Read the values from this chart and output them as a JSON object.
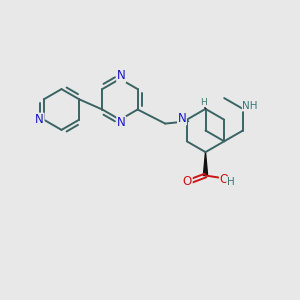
{
  "background_color": "#e8e8e8",
  "bond_color": "#3a6464",
  "n_color": "#1515cc",
  "o_color": "#cc1515",
  "h_color": "#3a7878",
  "black": "#111111",
  "figsize": [
    3.0,
    3.0
  ],
  "dpi": 100,
  "xlim": [
    0,
    10
  ],
  "ylim": [
    0,
    10
  ]
}
